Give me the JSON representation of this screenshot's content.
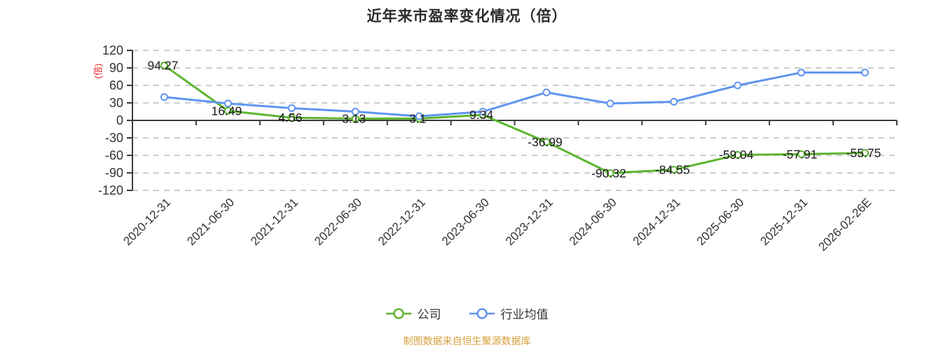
{
  "title": "近年来市盈率变化情况（倍）",
  "y_axis_name": "(倍)",
  "footer_text": "制图数据来自恒生聚源数据库",
  "legend": [
    {
      "label": "公司",
      "color": "#5cb52f"
    },
    {
      "label": "行业均值",
      "color": "#6095ef"
    }
  ],
  "colors": {
    "title": "#2b2b2b",
    "text": "#333333",
    "axis": "#3b3b3b",
    "grid": "#cccccc",
    "company": "#5cb52f",
    "industry": "#6095ef",
    "data_label": "#1a1a1a",
    "axis_name": "#e62828",
    "footer": "#d6a03c"
  },
  "chart_data": {
    "type": "line",
    "title": "近年来市盈率变化情况（倍）",
    "ylabel": "(倍)",
    "ylim": [
      -120,
      120
    ],
    "y_ticks": [
      120,
      90,
      60,
      30,
      0,
      -30,
      -60,
      -90,
      -120
    ],
    "grid": "dashed-horizontal",
    "legend_position": "bottom",
    "categories": [
      "2020-12-31",
      "2021-06-30",
      "2021-12-31",
      "2022-06-30",
      "2022-12-31",
      "2023-06-30",
      "2023-12-31",
      "2024-06-30",
      "2024-12-31",
      "2025-06-30",
      "2025-12-31",
      "2026-02-26E"
    ],
    "series": [
      {
        "name": "公司",
        "color": "#5cb52f",
        "labels_visible": true,
        "values": [
          94.27,
          16.49,
          4.56,
          3.13,
          3.1,
          9.34,
          -36.99,
          -90.32,
          -84.55,
          -59.04,
          -57.91,
          -55.75
        ]
      },
      {
        "name": "行业均值",
        "color": "#6095ef",
        "labels_visible": false,
        "values": [
          40,
          29,
          21,
          15,
          7,
          15,
          48,
          29,
          32,
          60,
          82,
          82
        ]
      }
    ]
  }
}
